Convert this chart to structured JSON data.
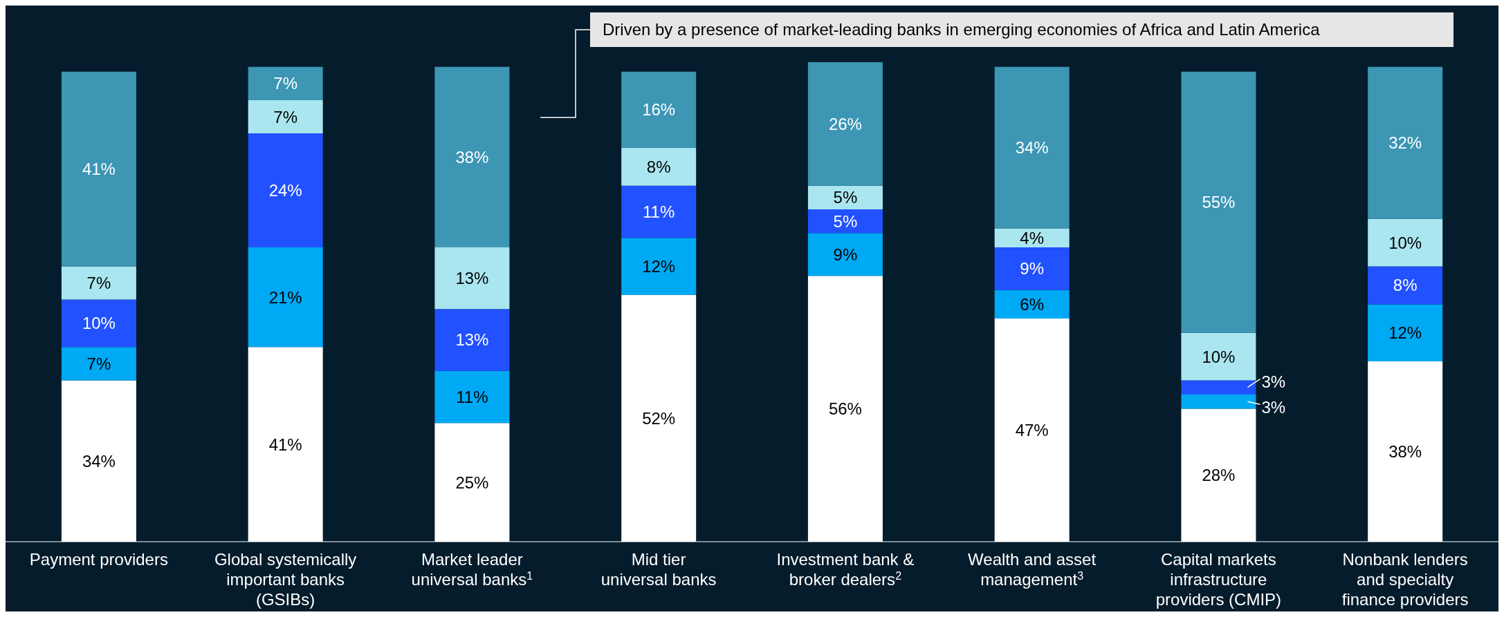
{
  "chart_data": {
    "type": "bar",
    "stacked": true,
    "categories": [
      "Payment providers",
      "Global systemically important banks (GSIBs)",
      "Market leader universal banks$^{1}$",
      "Mid tier universal banks",
      "Investment bank & broker dealers$^{2}$",
      "Wealth and asset management$^{3}$",
      "Capital markets infrastructure providers (CMIP)",
      "Nonbank lenders and specialty finance providers"
    ],
    "series": [
      {
        "color": "#ffffff",
        "values": [
          34,
          41,
          25,
          52,
          56,
          47,
          28,
          38
        ],
        "value_labels": [
          "34%",
          "41%",
          "25%",
          "52%",
          "56%",
          "47%",
          "28%",
          "38%"
        ]
      },
      {
        "color": "#00a9f4",
        "values": [
          7,
          21,
          11,
          12,
          9,
          6,
          3,
          12
        ],
        "value_labels": [
          "7%",
          "21%",
          "11%",
          "12%",
          "9%",
          "6%",
          "3%",
          "12%"
        ]
      },
      {
        "color": "#2251ff",
        "values": [
          10,
          24,
          13,
          11,
          5,
          9,
          3,
          8
        ],
        "value_labels": [
          "10%",
          "24%",
          "13%",
          "11%",
          "5%",
          "9%",
          "3%",
          "8%"
        ]
      },
      {
        "color": "#aae6f0",
        "values": [
          7,
          7,
          13,
          8,
          5,
          4,
          10,
          10
        ],
        "value_labels": [
          "7%",
          "7%",
          "13%",
          "8%",
          "5%",
          "4%",
          "10%",
          "10%"
        ]
      },
      {
        "color": "#3c96b4",
        "values": [
          41,
          7,
          38,
          16,
          26,
          34,
          55,
          32
        ],
        "value_labels": [
          "41%",
          "7%",
          "38%",
          "16%",
          "26%",
          "34%",
          "55%",
          "32%"
        ]
      }
    ],
    "annotations": [
      "Driven by a presence of market-leading banks in emerging economies of Africa and Latin America"
    ]
  }
}
